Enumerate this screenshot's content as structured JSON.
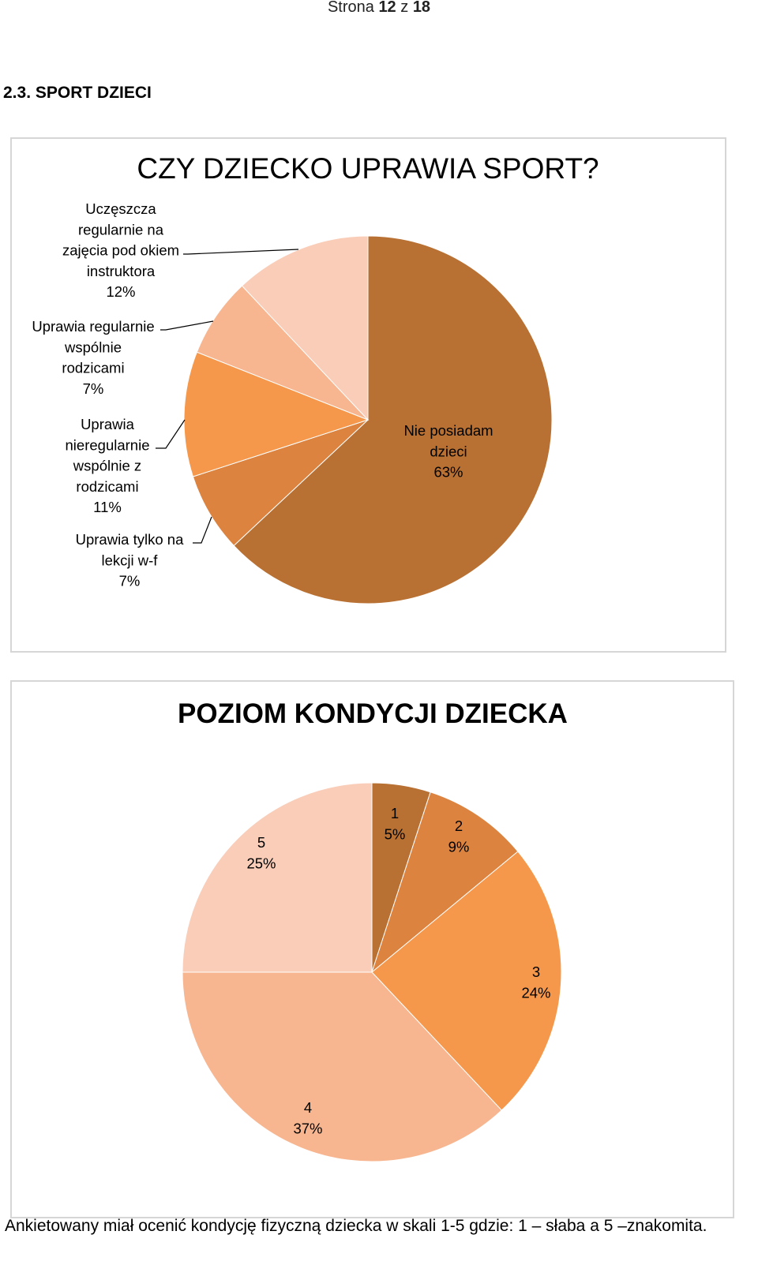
{
  "page": {
    "prefix": "Strona",
    "current": "12",
    "separator": "z",
    "total": "18"
  },
  "section_title": "2.3. SPORT DZIECI",
  "footnote": "Ankietowany miał ocenić kondycję fizyczną dziecka w skali 1-5 gdzie: 1 – słaba a 5 –znakomita.",
  "chart_data": [
    {
      "type": "pie",
      "title": "CZY DZIECKO UPRAWIA SPORT?",
      "slices": [
        {
          "label": "Nie posiadam dzieci",
          "value": 63,
          "percent": "63%",
          "color": "#b87033"
        },
        {
          "label": "Uprawia tylko na lekcji w-f",
          "value": 7,
          "percent": "7%",
          "color": "#dc8340"
        },
        {
          "label": "Uprawia nieregularnie wspólnie z rodzicami",
          "value": 11,
          "percent": "11%",
          "color": "#f5984b"
        },
        {
          "label": "Uprawia regularnie wspólnie rodzicami",
          "value": 7,
          "percent": "7%",
          "color": "#f7b690"
        },
        {
          "label": "Uczęszcza regularnie na zajęcia pod okiem instruktora",
          "value": 12,
          "percent": "12%",
          "color": "#f9cdb8"
        }
      ],
      "legend": "none"
    },
    {
      "type": "pie",
      "title": "POZIOM KONDYCJI DZIECKA",
      "slices": [
        {
          "label": "1",
          "value": 5,
          "percent": "5%",
          "color": "#b87033"
        },
        {
          "label": "2",
          "value": 9,
          "percent": "9%",
          "color": "#dc8340"
        },
        {
          "label": "3",
          "value": 24,
          "percent": "24%",
          "color": "#f5984b"
        },
        {
          "label": "4",
          "value": 37,
          "percent": "37%",
          "color": "#f7b690"
        },
        {
          "label": "5",
          "value": 25,
          "percent": "25%",
          "color": "#f9cdb8"
        }
      ],
      "legend": "none"
    }
  ]
}
